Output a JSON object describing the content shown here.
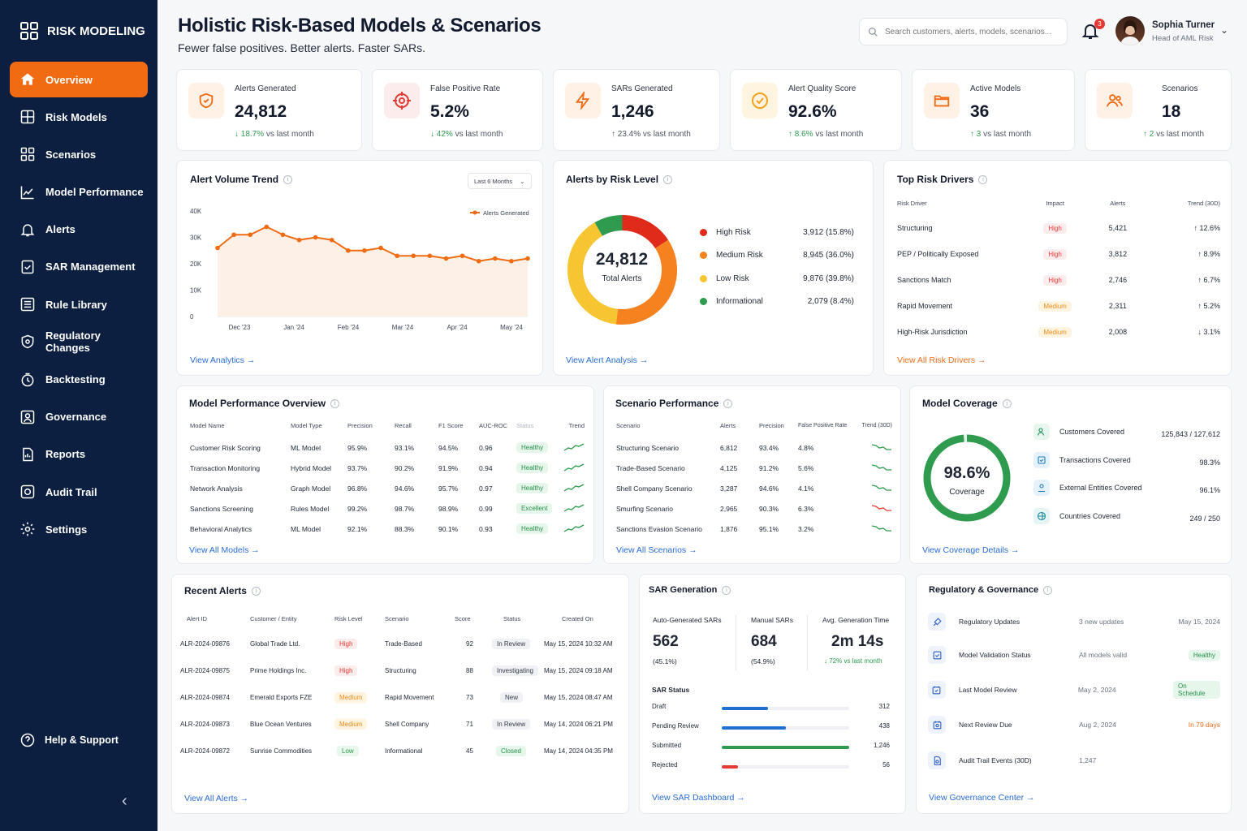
{
  "brand": {
    "name": "RISK MODELING"
  },
  "nav": [
    {
      "label": "Overview"
    },
    {
      "label": "Risk Models"
    },
    {
      "label": "Scenarios"
    },
    {
      "label": "Model Performance"
    },
    {
      "label": "Alerts"
    },
    {
      "label": "SAR Management"
    },
    {
      "label": "Rule Library"
    },
    {
      "label": "Regulatory Changes"
    },
    {
      "label": "Backtesting"
    },
    {
      "label": "Governance"
    },
    {
      "label": "Reports"
    },
    {
      "label": "Audit Trail"
    },
    {
      "label": "Settings"
    }
  ],
  "help_label": "Help & Support",
  "header": {
    "title": "Holistic Risk-Based Models & Scenarios",
    "subtitle": "Fewer false positives. Better alerts. Faster SARs.",
    "search_placeholder": "Search customers, alerts, models, scenarios...",
    "notification_count": "3",
    "user_name": "Sophia Turner",
    "user_role": "Head of AML Risk"
  },
  "stats": [
    {
      "label": "Alerts Generated",
      "value": "24,812",
      "change": "↓ 18.7%",
      "suffix": " vs last month",
      "color": "#2e9b4f"
    },
    {
      "label": "False Positive Rate",
      "value": "5.2%",
      "change": "↓ 42%",
      "suffix": " vs last month",
      "color": "#2e9b4f"
    },
    {
      "label": "SARs Generated",
      "value": "1,246",
      "change": "↑ 23.4%",
      "suffix": " vs last month",
      "color": "#4b5260"
    },
    {
      "label": "Alert Quality Score",
      "value": "92.6%",
      "change": "↑ 8.6%",
      "suffix": " vs last month",
      "color": "#2e9b4f"
    },
    {
      "label": "Active Models",
      "value": "36",
      "change": "↑ 3",
      "suffix": " vs last month",
      "color": "#2e9b4f"
    },
    {
      "label": "Scenarios",
      "value": "18",
      "change": "↑ 2",
      "suffix": " vs last month",
      "color": "#2e9b4f"
    }
  ],
  "alert_trend": {
    "title": "Alert Volume Trend",
    "range": "Last 6 Months",
    "link": "View Analytics",
    "legend": "Alerts Generated"
  },
  "chart_data": {
    "type": "area",
    "series": [
      {
        "name": "Alerts Generated",
        "values": [
          26000,
          31000,
          31000,
          34000,
          31000,
          29000,
          30000,
          29000,
          25000,
          25000,
          26000,
          23000,
          23000,
          23000,
          22000,
          23000,
          21000,
          22000,
          21000,
          22000
        ]
      }
    ],
    "x_ticks": [
      "Dec '23",
      "Jan '24",
      "Feb '24",
      "Mar '24",
      "Apr '24",
      "May '24"
    ],
    "y_ticks": [
      "40K",
      "30K",
      "20K",
      "10K",
      "0"
    ],
    "ylim": [
      0,
      40000
    ],
    "color": "#f06b12"
  },
  "risk_level": {
    "title": "Alerts by Risk Level",
    "total": "24,812",
    "total_label": "Total Alerts",
    "link": "View Alert Analysis",
    "items": [
      {
        "label": "High Risk",
        "value": "3,912 (15.8%)",
        "pct": 15.8,
        "color": "#e02a1a"
      },
      {
        "label": "Medium Risk",
        "value": "8,945 (36.0%)",
        "pct": 36.0,
        "color": "#f5821f"
      },
      {
        "label": "Low Risk",
        "value": "9,876 (39.8%)",
        "pct": 39.8,
        "color": "#f7c531"
      },
      {
        "label": "Informational",
        "value": "2,079 (8.4%)",
        "pct": 8.4,
        "color": "#2e9b4f"
      }
    ]
  },
  "risk_drivers": {
    "title": "Top Risk Drivers",
    "link": "View All Risk Drivers",
    "headers": [
      "Risk Driver",
      "Impact",
      "Alerts",
      "Trend (30D)"
    ],
    "rows": [
      {
        "name": "Structuring",
        "impact": "High",
        "alerts": "5,421",
        "trend": "↑ 12.6%",
        "dir": "up"
      },
      {
        "name": "PEP / Politically Exposed",
        "impact": "High",
        "alerts": "3,812",
        "trend": "↑ 8.9%",
        "dir": "up"
      },
      {
        "name": "Sanctions Match",
        "impact": "High",
        "alerts": "2,746",
        "trend": "↑ 6.7%",
        "dir": "up"
      },
      {
        "name": "Rapid Movement",
        "impact": "Medium",
        "alerts": "2,311",
        "trend": "↑ 5.2%",
        "dir": "up"
      },
      {
        "name": "High-Risk Jurisdiction",
        "impact": "Medium",
        "alerts": "2,008",
        "trend": "↓ 3.1%",
        "dir": "down"
      }
    ]
  },
  "model_perf": {
    "title": "Model Performance Overview",
    "link": "View All Models",
    "headers": [
      "Model Name",
      "Model Type",
      "Precision",
      "Recall",
      "F1 Score",
      "AUC-ROC",
      "Status",
      "Trend"
    ],
    "rows": [
      {
        "name": "Customer Risk Scoring",
        "type": "ML Model",
        "precision": "95.9%",
        "recall": "93.1%",
        "f1": "94.5%",
        "auc": "0.96",
        "status": "Healthy"
      },
      {
        "name": "Transaction Monitoring",
        "type": "Hybrid Model",
        "precision": "93.7%",
        "recall": "90.2%",
        "f1": "91.9%",
        "auc": "0.94",
        "status": "Healthy"
      },
      {
        "name": "Network Analysis",
        "type": "Graph Model",
        "precision": "96.8%",
        "recall": "94.6%",
        "f1": "95.7%",
        "auc": "0.97",
        "status": "Healthy"
      },
      {
        "name": "Sanctions Screening",
        "type": "Rules Model",
        "precision": "99.2%",
        "recall": "98.7%",
        "f1": "98.9%",
        "auc": "0.99",
        "status": "Excellent"
      },
      {
        "name": "Behavioral Analytics",
        "type": "ML Model",
        "precision": "92.1%",
        "recall": "88.3%",
        "f1": "90.1%",
        "auc": "0.93",
        "status": "Healthy"
      }
    ]
  },
  "scenario_perf": {
    "title": "Scenario Performance",
    "link": "View All Scenarios",
    "headers": [
      "Scenario",
      "Alerts",
      "Precision",
      "False Positive Rate",
      "Trend (30D)"
    ],
    "rows": [
      {
        "name": "Structuring Scenario",
        "alerts": "6,812",
        "precision": "93.4%",
        "fpr": "4.8%",
        "color": "#2e9b4f"
      },
      {
        "name": "Trade-Based Scenario",
        "alerts": "4,125",
        "precision": "91.2%",
        "fpr": "5.6%",
        "color": "#2e9b4f"
      },
      {
        "name": "Shell Company Scenario",
        "alerts": "3,287",
        "precision": "94.6%",
        "fpr": "4.1%",
        "color": "#2e9b4f"
      },
      {
        "name": "Smurfing Scenario",
        "alerts": "2,965",
        "precision": "90.3%",
        "fpr": "6.3%",
        "color": "#e53935"
      },
      {
        "name": "Sanctions Evasion Scenario",
        "alerts": "1,876",
        "precision": "95.1%",
        "fpr": "3.2%",
        "color": "#2e9b4f"
      }
    ]
  },
  "coverage": {
    "title": "Model Coverage",
    "value": "98.6%",
    "pct": 98.6,
    "label": "Coverage",
    "link": "View Coverage Details",
    "items": [
      {
        "label": "Customers Covered",
        "value": "125,843 / 127,612"
      },
      {
        "label": "Transactions Covered",
        "value": "98.3%"
      },
      {
        "label": "External Entities Covered",
        "value": "96.1%"
      },
      {
        "label": "Countries Covered",
        "value": "249 / 250"
      }
    ]
  },
  "recent_alerts": {
    "title": "Recent Alerts",
    "link": "View All Alerts",
    "headers": [
      "Alert ID",
      "Customer / Entity",
      "Risk Level",
      "Scenario",
      "Score",
      "Status",
      "Created On"
    ],
    "rows": [
      {
        "id": "ALR-2024-09876",
        "customer": "Global Trade Ltd.",
        "risk": "High",
        "scenario": "Trade-Based",
        "score": "92",
        "status": "In Review",
        "created": "May 15, 2024 10:32 AM"
      },
      {
        "id": "ALR-2024-09875",
        "customer": "Prime Holdings Inc.",
        "risk": "High",
        "scenario": "Structuring",
        "score": "88",
        "status": "Investigating",
        "created": "May 15, 2024 09:18 AM"
      },
      {
        "id": "ALR-2024-09874",
        "customer": "Emerald Exports FZE",
        "risk": "Medium",
        "scenario": "Rapid Movement",
        "score": "73",
        "status": "New",
        "created": "May 15, 2024 08:47 AM"
      },
      {
        "id": "ALR-2024-09873",
        "customer": "Blue Ocean Ventures",
        "risk": "Medium",
        "scenario": "Shell Company",
        "score": "71",
        "status": "In Review",
        "created": "May 14, 2024 06:21 PM"
      },
      {
        "id": "ALR-2024-09872",
        "customer": "Sunrise Commodities",
        "risk": "Low",
        "scenario": "Informational",
        "score": "45",
        "status": "Closed",
        "created": "May 14, 2024 04:35 PM"
      }
    ]
  },
  "sar": {
    "title": "SAR Generation",
    "link": "View SAR Dashboard",
    "auto_label": "Auto-Generated SARs",
    "auto_value": "562",
    "auto_pct": "(45.1%)",
    "manual_label": "Manual SARs",
    "manual_value": "684",
    "manual_pct": "(54.9%)",
    "avg_label": "Avg. Generation Time",
    "avg_value": "2m 14s",
    "avg_change": "↓ 72% vs last month",
    "status_title": "SAR Status",
    "status": [
      {
        "label": "Draft",
        "value": "312",
        "frac": 0.36,
        "color": "#1f6fd1"
      },
      {
        "label": "Pending Review",
        "value": "438",
        "frac": 0.5,
        "color": "#1f6fd1"
      },
      {
        "label": "Submitted",
        "value": "1,246",
        "frac": 1.0,
        "color": "#2e9b4f"
      },
      {
        "label": "Rejected",
        "value": "56",
        "frac": 0.13,
        "color": "#e53935"
      }
    ]
  },
  "governance": {
    "title": "Regulatory & Governance",
    "link": "View Governance Center",
    "rows": [
      {
        "label": "Regulatory Updates",
        "detail": "3 new updates",
        "meta": "May 15, 2024"
      },
      {
        "label": "Model Validation Status",
        "detail": "All models valid",
        "meta": "Healthy"
      },
      {
        "label": "Last Model Review",
        "detail": "May 2, 2024",
        "meta": "On Schedule"
      },
      {
        "label": "Next Review Due",
        "detail": "Aug 2, 2024",
        "meta": "In 79 days"
      },
      {
        "label": "Audit Trail Events (30D)",
        "detail": "1,247",
        "meta": ""
      }
    ]
  }
}
